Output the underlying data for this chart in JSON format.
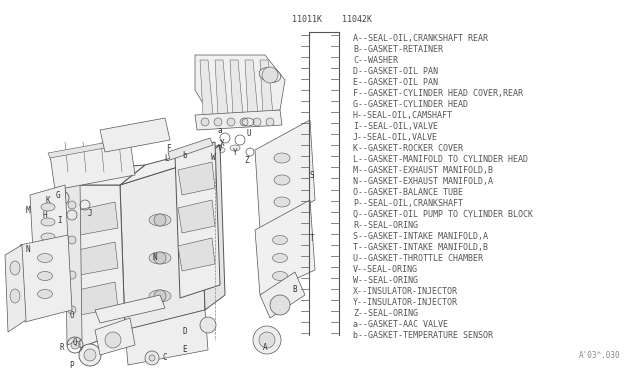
{
  "background_color": "#ffffff",
  "part_numbers": [
    "11011K",
    "11042K"
  ],
  "legend_items": [
    "A--SEAL-OIL,CRANKSHAFT REAR",
    "B--GASKET-RETAINER",
    "C--WASHER",
    "D--GASKET-OIL PAN",
    "E--GASKET-OIL PAN",
    "F--GASKET-CYLINDER HEAD COVER,REAR",
    "G--GASKET-CYLINDER HEAD",
    "H--SEAL-OIL,CAMSHAFT",
    "I--SEAL-OIL,VALVE",
    "J--SEAL-OIL,VALVE",
    "K--GASKET-ROCKER COVER",
    "L--GASKET-MANIFOLD TO CYLINDER HEAD",
    "M--GASKET-EXHAUST MANIFOLD,B",
    "N--GASKET-EXHAUST MANIFOLD,A",
    "O--GASKET-BALANCE TUBE",
    "P--SEAL-OIL,CRANKSHAFT",
    "Q--GASKET-OIL PUMP TO CYLINDER BLOCK",
    "R--SEAL-ORING",
    "S--GASKET-INTAKE MANIFOLD,A",
    "T--GASKET-INTAKE MANIFOLD,B",
    "U--GASKET-THROTTLE CHAMBER",
    "V--SEAL-ORING",
    "W--SEAL-ORING",
    "X--INSULATOR-INJECTOR",
    "Y--INSULATOR-INJECTOR",
    "Z--SEAL-ORING",
    "a--GASKET-AAC VALVE",
    "b--GASKET-TEMPERATURE SENSOR"
  ],
  "watermark": "A'03^.030"
}
